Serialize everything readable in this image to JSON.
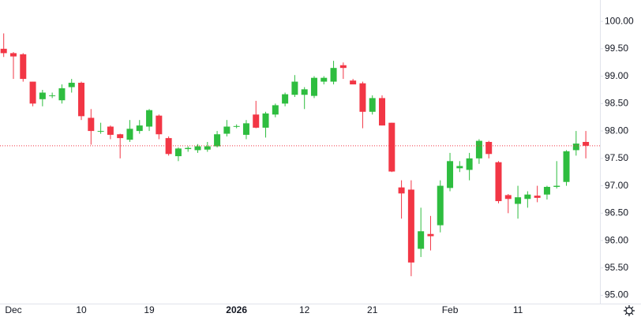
{
  "chart_data": {
    "type": "candlestick",
    "categories": [
      null,
      "Dec",
      null,
      null,
      null,
      null,
      null,
      null,
      "10",
      null,
      null,
      null,
      null,
      null,
      null,
      "19",
      null,
      null,
      null,
      null,
      null,
      null,
      null,
      null,
      "2026",
      null,
      null,
      null,
      null,
      null,
      null,
      "12",
      null,
      null,
      null,
      null,
      null,
      null,
      "21",
      null,
      null,
      null,
      null,
      null,
      null,
      null,
      "Feb",
      null,
      null,
      null,
      null,
      null,
      null,
      "11",
      null,
      null,
      null,
      null,
      null,
      null,
      null
    ],
    "open": [
      99.5,
      99.42,
      99.4,
      98.9,
      98.58,
      98.64,
      98.56,
      98.8,
      98.88,
      98.24,
      97.99,
      98.08,
      97.94,
      97.84,
      98.0,
      98.08,
      98.28,
      97.87,
      97.54,
      97.67,
      97.65,
      97.66,
      97.72,
      97.95,
      98.08,
      97.93,
      98.3,
      98.06,
      98.3,
      98.5,
      98.66,
      98.66,
      98.64,
      98.9,
      98.9,
      99.2,
      98.92,
      98.87,
      98.35,
      98.6,
      98.15,
      96.97,
      96.93,
      95.85,
      96.12,
      96.28,
      96.96,
      97.32,
      97.29,
      97.5,
      97.8,
      97.43,
      96.83,
      96.67,
      96.76,
      96.82,
      96.84,
      96.98,
      97.07,
      97.65,
      97.8
    ],
    "high": [
      99.78,
      99.44,
      99.42,
      98.9,
      98.75,
      98.7,
      98.85,
      98.95,
      98.9,
      98.4,
      98.15,
      98.1,
      97.95,
      98.2,
      98.2,
      98.4,
      98.3,
      97.9,
      97.7,
      97.72,
      97.76,
      97.8,
      98.0,
      98.2,
      98.12,
      98.2,
      98.55,
      98.35,
      98.5,
      98.7,
      99.02,
      98.8,
      99.0,
      99.0,
      99.28,
      99.25,
      98.95,
      98.9,
      98.65,
      98.65,
      98.15,
      97.1,
      97.1,
      96.6,
      96.45,
      97.1,
      97.6,
      97.45,
      97.6,
      97.85,
      97.82,
      97.45,
      96.85,
      97.0,
      96.9,
      97.0,
      97.0,
      97.45,
      97.65,
      98.0,
      98.0
    ],
    "low": [
      99.35,
      98.95,
      98.9,
      98.45,
      98.45,
      98.6,
      98.5,
      98.7,
      98.2,
      97.75,
      97.95,
      97.85,
      97.5,
      97.8,
      97.95,
      98.0,
      97.85,
      97.55,
      97.45,
      97.62,
      97.6,
      97.62,
      97.7,
      97.9,
      98.05,
      97.85,
      98.05,
      97.88,
      98.25,
      98.45,
      98.62,
      98.4,
      98.6,
      98.85,
      98.85,
      98.95,
      98.85,
      98.05,
      98.3,
      98.1,
      97.25,
      96.4,
      95.35,
      95.7,
      95.82,
      96.15,
      96.9,
      97.25,
      97.1,
      97.4,
      97.5,
      96.68,
      96.5,
      96.4,
      96.6,
      96.7,
      96.75,
      96.95,
      97.0,
      97.55,
      97.5
    ],
    "close": [
      99.42,
      99.36,
      98.95,
      98.5,
      98.7,
      98.65,
      98.78,
      98.88,
      98.27,
      98.0,
      98.0,
      97.93,
      97.87,
      98.04,
      98.1,
      98.38,
      97.94,
      97.58,
      97.68,
      97.69,
      97.72,
      97.72,
      97.94,
      98.08,
      98.09,
      98.14,
      98.06,
      98.32,
      98.47,
      98.67,
      98.9,
      98.76,
      98.97,
      98.97,
      99.15,
      99.15,
      98.85,
      98.35,
      98.6,
      98.1,
      97.26,
      96.86,
      95.6,
      96.17,
      96.08,
      97.0,
      97.45,
      97.36,
      97.5,
      97.82,
      97.58,
      96.72,
      96.76,
      96.79,
      96.84,
      96.78,
      96.98,
      97.0,
      97.63,
      97.77,
      97.73
    ],
    "up_color": "#2ebd3f",
    "down_color": "#f23645",
    "last_price": 97.73,
    "ylim": [
      94.85,
      100.39
    ],
    "yticks": [
      {
        "value": 95,
        "label": "95.00"
      },
      {
        "value": 95.5,
        "label": "95.50"
      },
      {
        "value": 96,
        "label": "96.00"
      },
      {
        "value": 96.5,
        "label": "96.50"
      },
      {
        "value": 97,
        "label": "97.00"
      },
      {
        "value": 97.5,
        "label": "97.50"
      },
      {
        "value": 98,
        "label": "98.00"
      },
      {
        "value": 98.5,
        "label": "98.50"
      },
      {
        "value": 99,
        "label": "99.00"
      },
      {
        "value": 99.5,
        "label": "99.50"
      },
      {
        "value": 100,
        "label": "100.00"
      }
    ],
    "grid": false
  }
}
